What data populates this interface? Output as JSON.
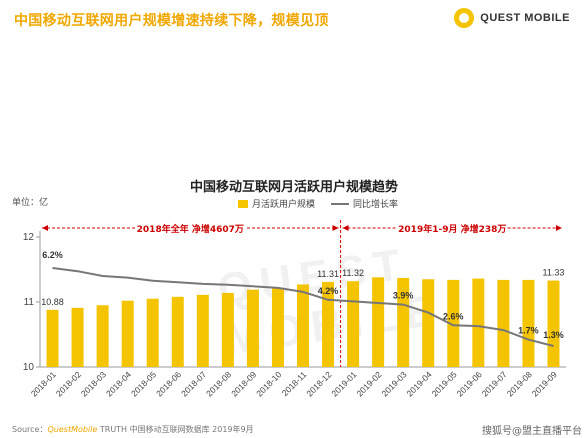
{
  "header": {
    "title": "中国移动互联网用户规模增速持续下降，规模见顶",
    "brand": "QUEST MOBILE",
    "accent_color": "#f0a800",
    "logo_icon": "quest-mobile-logo-icon"
  },
  "watermark": "QUEST MOBILE",
  "chart_data": {
    "type": "bar",
    "title": "中国移动互联网月活跃用户规模趋势",
    "unit": "单位：亿",
    "legend": [
      "月活跃用户规模",
      "同比增长率"
    ],
    "categories": [
      "2018-01",
      "2018-02",
      "2018-03",
      "2018-04",
      "2018-05",
      "2018-06",
      "2018-07",
      "2018-08",
      "2018-09",
      "2018-10",
      "2018-11",
      "2018-12",
      "2019-01",
      "2019-02",
      "2019-03",
      "2019-04",
      "2019-05",
      "2019-06",
      "2019-07",
      "2019-08",
      "2019-09"
    ],
    "yticks": [
      "12",
      "11",
      "10"
    ],
    "ylim": [
      10,
      12
    ],
    "series": [
      {
        "name": "月活跃用户规模",
        "kind": "bar",
        "color": "#f5c400",
        "values": [
          10.88,
          10.91,
          10.95,
          11.02,
          11.05,
          11.08,
          11.11,
          11.14,
          11.19,
          11.21,
          11.27,
          11.31,
          11.32,
          11.38,
          11.37,
          11.35,
          11.34,
          11.36,
          11.34,
          11.34,
          11.33
        ]
      },
      {
        "name": "同比增长率",
        "kind": "line",
        "color": "#777777",
        "values": [
          6.2,
          6.0,
          5.7,
          5.6,
          5.4,
          5.3,
          5.2,
          5.15,
          5.05,
          4.95,
          4.7,
          4.2,
          4.1,
          4.0,
          3.9,
          3.4,
          2.6,
          2.55,
          2.3,
          1.7,
          1.3
        ]
      }
    ],
    "bar_value_labels": [
      {
        "index": 0,
        "text": "10.88"
      },
      {
        "index": 11,
        "text": "11.31"
      },
      {
        "index": 12,
        "text": "11.32"
      },
      {
        "index": 20,
        "text": "11.33"
      }
    ],
    "line_value_labels": [
      {
        "index": 0,
        "text": "6.2%"
      },
      {
        "index": 11,
        "text": "4.2%"
      },
      {
        "index": 14,
        "text": "3.9%"
      },
      {
        "index": 16,
        "text": "2.6%"
      },
      {
        "index": 19,
        "text": "1.7%"
      },
      {
        "index": 20,
        "text": "1.3%"
      }
    ],
    "annotations": [
      {
        "text": "2018年全年 净增4607万",
        "from_index": 0,
        "to_index": 11
      },
      {
        "text": "2019年1-9月 净增238万",
        "from_index": 12,
        "to_index": 20
      }
    ]
  },
  "footer": {
    "source_prefix": "Source：",
    "source_brand": "QuestMobile",
    "source_rest": " TRUTH 中国移动互联网数据库 2019年9月",
    "credit": "搜狐号@盟主直播平台"
  }
}
